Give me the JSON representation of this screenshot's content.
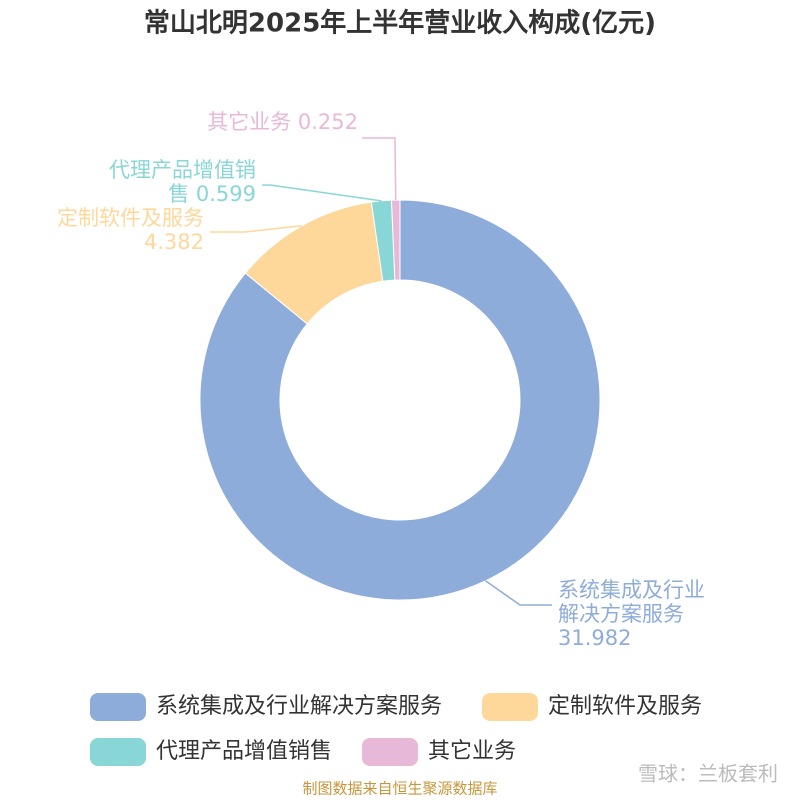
{
  "chart_data": {
    "type": "donut",
    "title": "常山北明2025年上半年营业收入构成(亿元)",
    "categories": [
      "系统集成及行业解决方案服务",
      "定制软件及服务",
      "代理产品增值销售",
      "其它业务"
    ],
    "values": [
      31.982,
      4.382,
      0.599,
      0.252
    ],
    "colors": [
      "#8eacd9",
      "#fdd89a",
      "#88d6d6",
      "#e8b8d8"
    ],
    "legend": "bottom",
    "source": "制图数据来自恒生聚源数据库",
    "watermark": "雪球：兰板套利"
  }
}
